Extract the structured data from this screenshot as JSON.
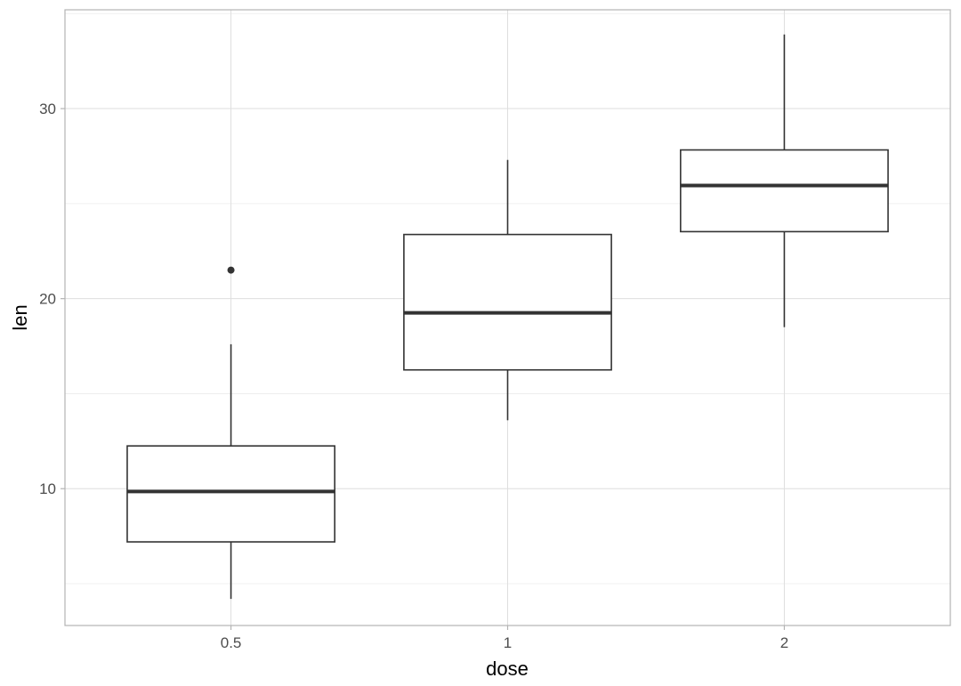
{
  "chart_data": {
    "type": "boxplot",
    "xlabel": "dose",
    "ylabel": "len",
    "categories": [
      "0.5",
      "1",
      "2"
    ],
    "y_ticks": [
      10,
      20,
      30
    ],
    "y_tick_labels": [
      "10",
      "20",
      "30"
    ],
    "ylim": [
      2.8,
      35.2
    ],
    "grid": true,
    "boxes": [
      {
        "category": "0.5",
        "lower_whisker": 4.2,
        "q1": 7.2,
        "median": 9.85,
        "q3": 12.25,
        "upper_whisker": 17.6,
        "outliers": [
          21.5
        ]
      },
      {
        "category": "1",
        "lower_whisker": 13.6,
        "q1": 16.25,
        "median": 19.25,
        "q3": 23.375,
        "upper_whisker": 27.3,
        "outliers": []
      },
      {
        "category": "2",
        "lower_whisker": 18.5,
        "q1": 23.525,
        "median": 25.95,
        "q3": 27.825,
        "upper_whisker": 33.9,
        "outliers": []
      }
    ],
    "colors": {
      "box_line": "#333333",
      "box_fill": "#ffffff",
      "grid": "#dedede",
      "border": "#b3b3b3"
    }
  }
}
